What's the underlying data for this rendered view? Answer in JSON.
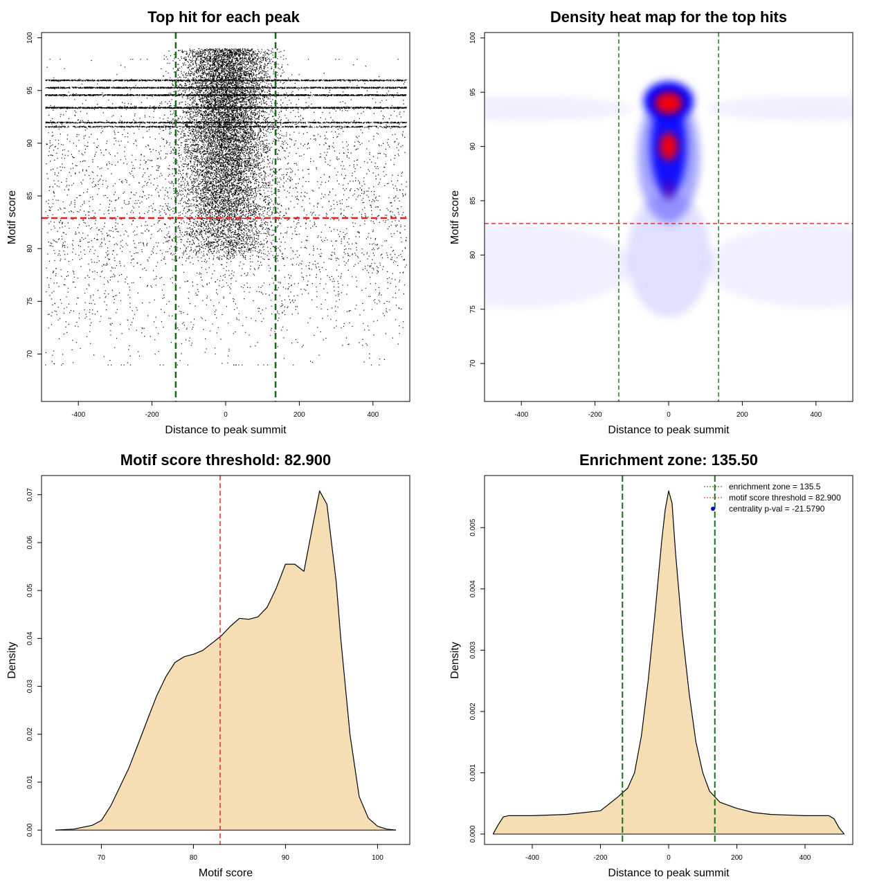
{
  "colors": {
    "threshold": "#dd2222",
    "zone": "#1a6b1a",
    "fill": "#f5deb3",
    "heat_low": "#ffffff",
    "heat_mid": "#0000ff",
    "heat_high": "#ff0000",
    "marker": "#0000cc"
  },
  "chart_data": [
    {
      "type": "scatter",
      "title": "Top hit for each peak",
      "xlabel": "Distance to peak summit",
      "ylabel": "Motif score",
      "xlim": [
        -500,
        500
      ],
      "ylim": [
        65.5,
        100.5
      ],
      "xticks": [
        -400,
        -200,
        0,
        200,
        400
      ],
      "yticks": [
        70,
        75,
        80,
        85,
        90,
        95,
        100
      ],
      "xtick_labels": [
        "-400",
        "-200",
        "0",
        "200",
        "400"
      ],
      "ytick_labels": [
        "70",
        "75",
        "80",
        "85",
        "90",
        "95",
        "100"
      ],
      "points_description_note": null,
      "background_density": {
        "x_range": [
          -490,
          490
        ],
        "y_range": [
          69,
          98
        ],
        "center_x": 0,
        "center_spread_x": 60,
        "center_y_range": [
          79,
          99
        ]
      },
      "hlines": [
        {
          "y": 82.9,
          "color": "threshold"
        }
      ],
      "vlines": [
        {
          "x": -135.5,
          "color": "zone"
        },
        {
          "x": 135.5,
          "color": "zone"
        }
      ],
      "grid": false
    },
    {
      "type": "heatmap",
      "title": "Density heat map for the top hits",
      "xlabel": "Distance to peak summit",
      "ylabel": "Motif score",
      "xlim": [
        -500,
        500
      ],
      "ylim": [
        66.5,
        100.5
      ],
      "xticks": [
        -400,
        -200,
        0,
        200,
        400
      ],
      "yticks": [
        70,
        75,
        80,
        85,
        90,
        95,
        100
      ],
      "xtick_labels": [
        "-400",
        "-200",
        "0",
        "200",
        "400"
      ],
      "ytick_labels": [
        "70",
        "75",
        "80",
        "85",
        "90",
        "95",
        "100"
      ],
      "density_peaks": [
        {
          "x": 0,
          "y": 94,
          "level": "high"
        },
        {
          "x": 0,
          "y": 90,
          "level": "high"
        },
        {
          "x": 0,
          "y": 86,
          "level": "mid"
        },
        {
          "x": -400,
          "y": 79,
          "level": "low"
        },
        {
          "x": 400,
          "y": 79,
          "level": "low"
        },
        {
          "x": -400,
          "y": 93.5,
          "level": "low"
        },
        {
          "x": 400,
          "y": 93.5,
          "level": "low"
        }
      ],
      "hlines": [
        {
          "y": 82.9,
          "color": "threshold"
        }
      ],
      "vlines": [
        {
          "x": -135.5,
          "color": "zone"
        },
        {
          "x": 135.5,
          "color": "zone"
        }
      ],
      "grid": false
    },
    {
      "type": "area",
      "title": "Motif score threshold: 82.900",
      "xlabel": "Motif score",
      "ylabel": "Density",
      "xlim": [
        63.5,
        103.5
      ],
      "ylim": [
        -0.003,
        0.074
      ],
      "xticks": [
        70,
        80,
        90,
        100
      ],
      "yticks": [
        0,
        0.01,
        0.02,
        0.03,
        0.04,
        0.05,
        0.06,
        0.07
      ],
      "xtick_labels": [
        "70",
        "80",
        "90",
        "100"
      ],
      "ytick_labels": [
        "0.00",
        "0.01",
        "0.02",
        "0.03",
        "0.04",
        "0.05",
        "0.06",
        "0.07"
      ],
      "x": [
        65,
        67,
        69,
        70,
        71,
        72,
        73,
        74,
        75,
        76,
        77,
        78,
        79,
        80,
        81,
        82,
        83,
        84,
        85,
        86,
        87,
        88,
        89,
        90,
        91,
        92,
        93,
        93.7,
        94.5,
        95.5,
        96,
        97,
        98,
        99,
        100,
        101,
        102
      ],
      "y": [
        0.0,
        0.0002,
        0.001,
        0.002,
        0.005,
        0.009,
        0.013,
        0.018,
        0.023,
        0.028,
        0.032,
        0.035,
        0.0362,
        0.0367,
        0.0375,
        0.039,
        0.0405,
        0.0425,
        0.0442,
        0.044,
        0.0445,
        0.0465,
        0.0505,
        0.0555,
        0.0555,
        0.054,
        0.064,
        0.0708,
        0.068,
        0.052,
        0.04,
        0.02,
        0.007,
        0.0025,
        0.0008,
        0.0002,
        0.0
      ],
      "vlines": [
        {
          "x": 82.9,
          "color": "threshold"
        }
      ],
      "grid": false
    },
    {
      "type": "area",
      "title": "Enrichment zone: 135.50",
      "xlabel": "Distance to peak summit",
      "ylabel": "Density",
      "xlim": [
        -540,
        540
      ],
      "ylim": [
        -0.00017,
        0.00585
      ],
      "xticks": [
        -400,
        -200,
        0,
        200,
        400
      ],
      "yticks": [
        0,
        0.001,
        0.002,
        0.003,
        0.004,
        0.005
      ],
      "xtick_labels": [
        "-400",
        "-200",
        "0",
        "200",
        "400"
      ],
      "ytick_labels": [
        "0.000",
        "0.001",
        "0.002",
        "0.003",
        "0.004",
        "0.005"
      ],
      "x": [
        -515,
        -500,
        -485,
        -470,
        -400,
        -300,
        -250,
        -200,
        -150,
        -120,
        -100,
        -80,
        -60,
        -40,
        -20,
        -10,
        0,
        10,
        20,
        40,
        60,
        80,
        100,
        120,
        150,
        200,
        250,
        300,
        400,
        470,
        485,
        500,
        515
      ],
      "y": [
        0.0,
        0.00015,
        0.00028,
        0.0003,
        0.0003,
        0.00032,
        0.00035,
        0.00038,
        0.0006,
        0.00075,
        0.001,
        0.0016,
        0.0025,
        0.0036,
        0.0048,
        0.0053,
        0.0056,
        0.0054,
        0.0046,
        0.0033,
        0.0023,
        0.0015,
        0.001,
        0.0007,
        0.00052,
        0.00042,
        0.00035,
        0.00032,
        0.0003,
        0.0003,
        0.00025,
        0.0001,
        0.0
      ],
      "vlines": [
        {
          "x": -135.5,
          "color": "zone"
        },
        {
          "x": 135.5,
          "color": "zone"
        }
      ],
      "legend": {
        "position": "top-right",
        "entries": [
          {
            "label": "enrichment zone = 135.5",
            "style": "dotted-line",
            "color": "zone"
          },
          {
            "label": "motif score threshold = 82.900",
            "style": "dotted-line",
            "color": "threshold"
          },
          {
            "label": "centrality p-val = -21.5790",
            "style": "point",
            "color": "marker"
          }
        ]
      },
      "grid": false
    }
  ]
}
